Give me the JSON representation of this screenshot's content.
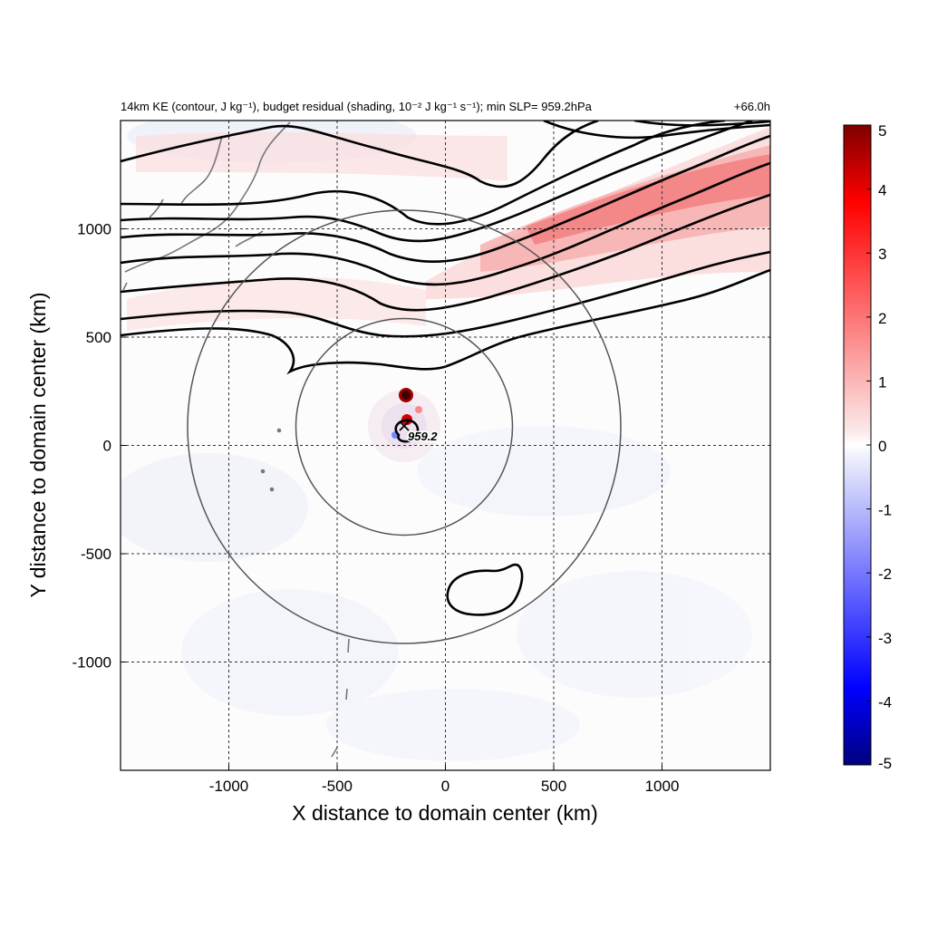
{
  "chart_data": {
    "type": "heatmap",
    "title": "14km KE (contour, J kg⁻¹), budget residual (shading, 10⁻² J kg⁻¹ s⁻¹); min SLP= 959.2hPa",
    "time_label": "+66.0h",
    "xlabel": "X distance to domain center (km)",
    "ylabel": "Y distance to domain center (km)",
    "xlim": [
      -1500,
      1500
    ],
    "ylim": [
      -1500,
      1500
    ],
    "xticks": [
      -1000,
      -500,
      0,
      500,
      1000
    ],
    "yticks": [
      -1000,
      -500,
      0,
      500,
      1000
    ],
    "grid": true,
    "colorbar": {
      "range": [
        -5,
        5
      ],
      "ticks": [
        5,
        4,
        3,
        2,
        1,
        0,
        -1,
        -2,
        -3,
        -4,
        -5
      ],
      "colors": [
        "#00007f",
        "#0000ff",
        "#ffffff",
        "#ff0000",
        "#7f0000"
      ]
    },
    "storm_center": {
      "x": -190,
      "y": 80,
      "label": "959.2"
    },
    "radius_rings_km": [
      500,
      1000
    ],
    "shading_features": [
      {
        "name": "positive residual band",
        "x": [
          500,
          1500
        ],
        "y": [
          850,
          1500
        ],
        "approx_value": 2.5
      },
      {
        "name": "storm core max",
        "x": -180,
        "y": 230,
        "approx_value": 5
      },
      {
        "name": "storm core max 2",
        "x": -175,
        "y": 120,
        "approx_value": 4
      }
    ]
  }
}
